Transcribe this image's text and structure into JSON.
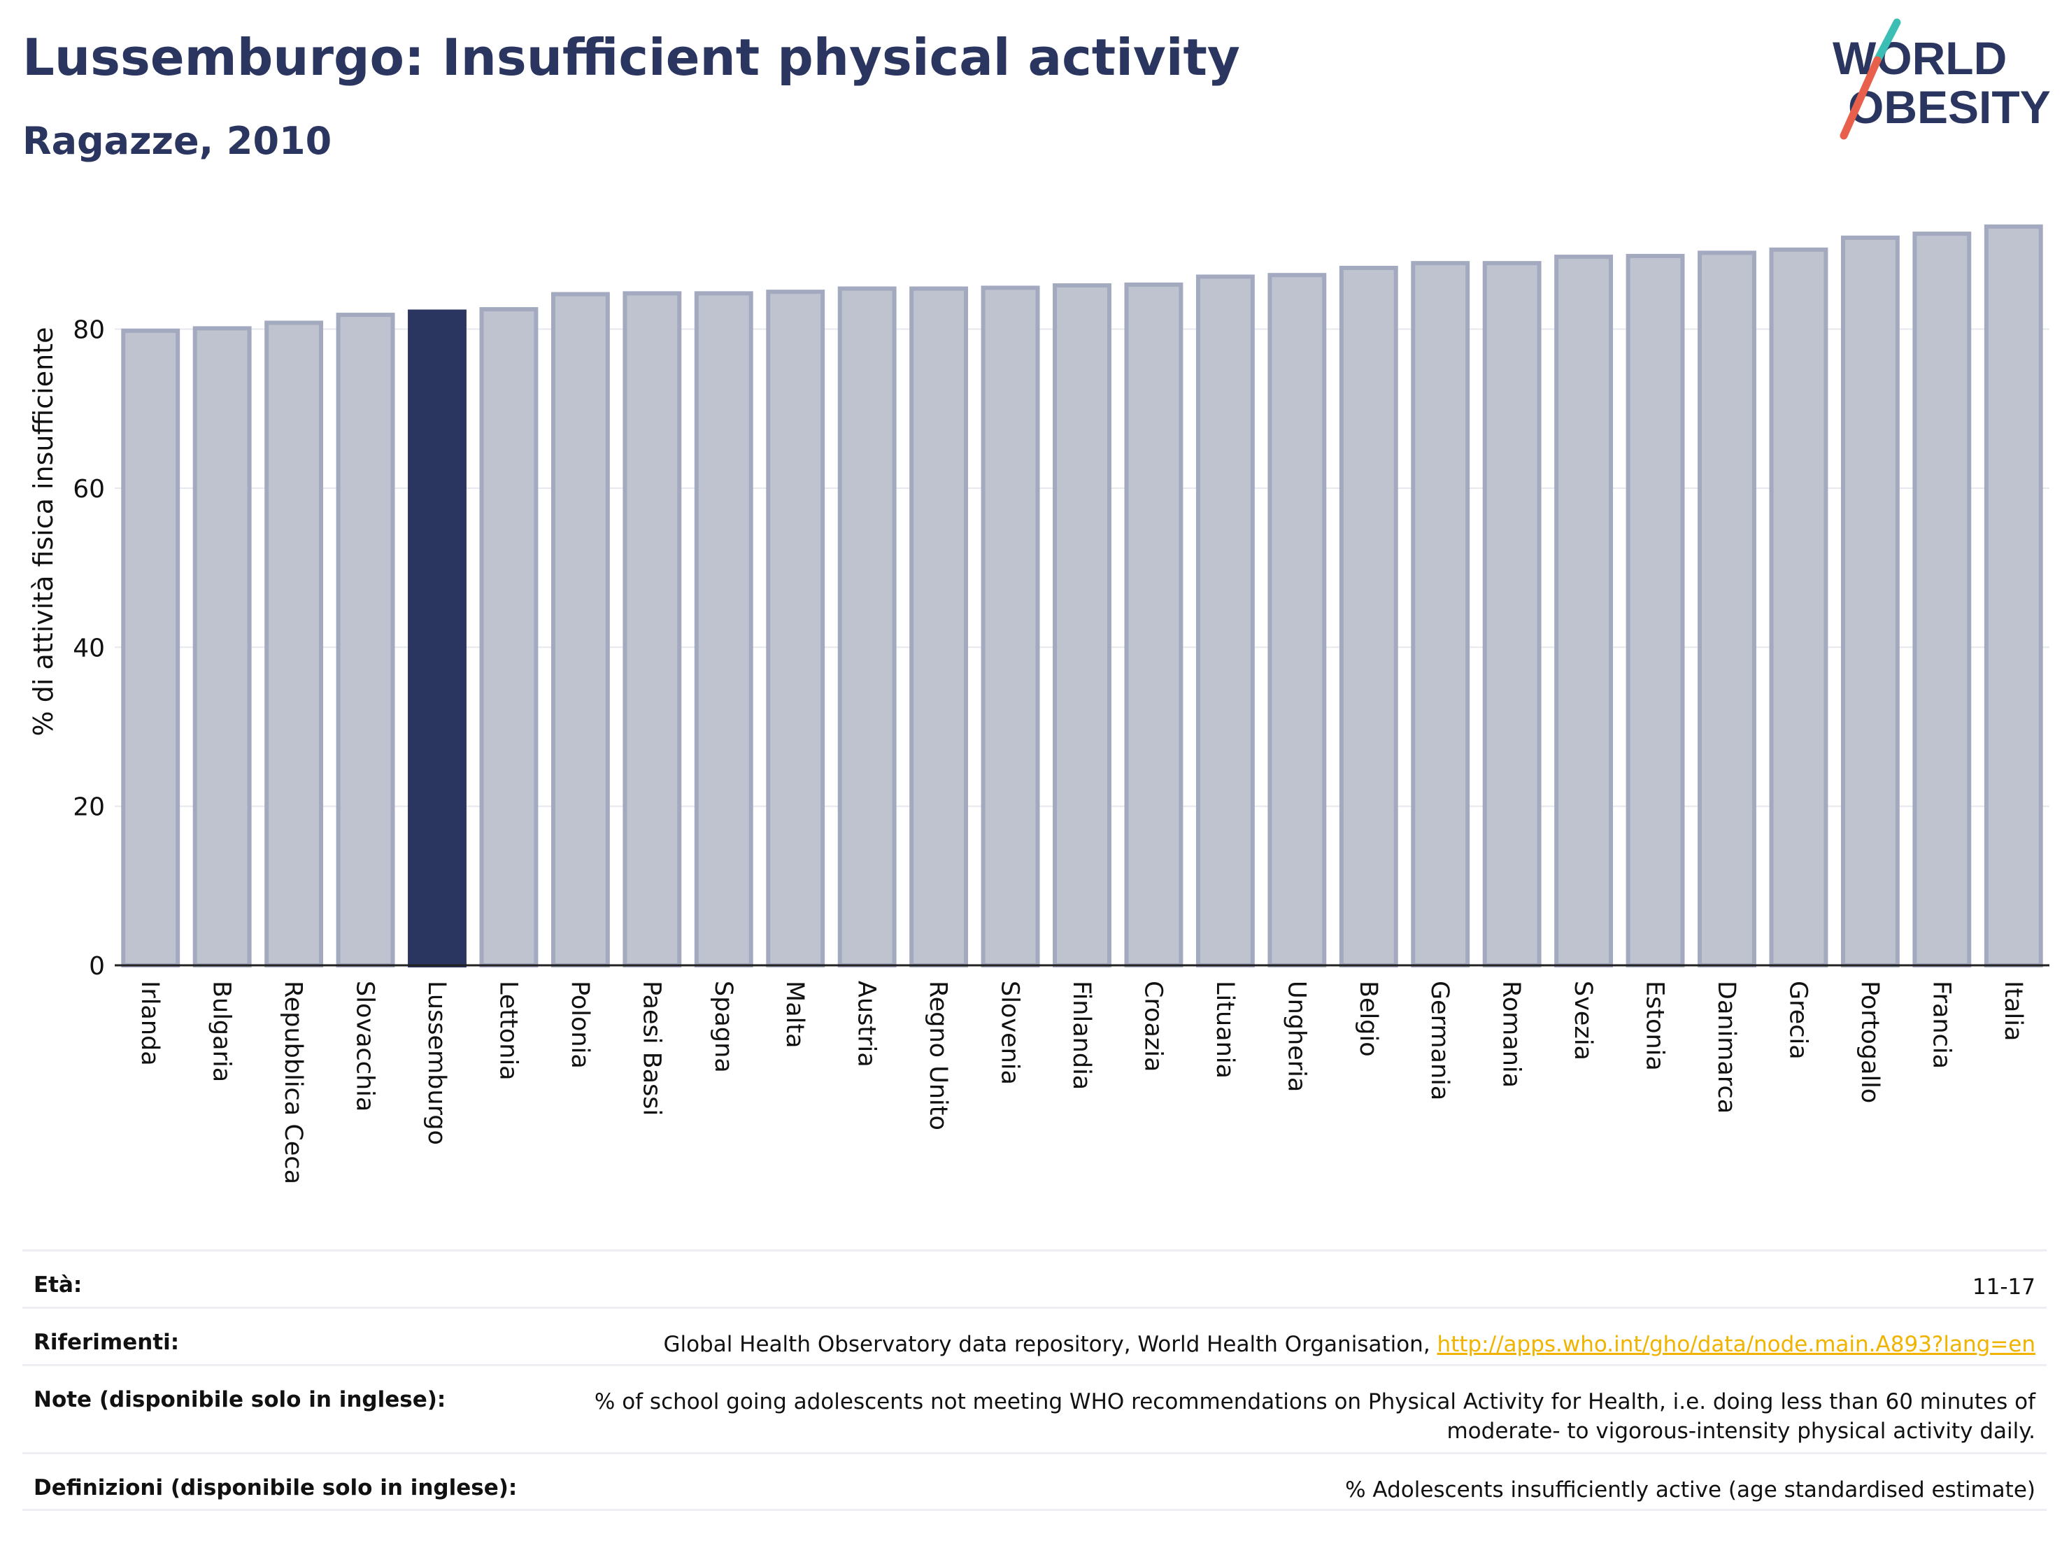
{
  "title": "Lussemburgo: Insufficient physical activity",
  "subtitle": "Ragazze, 2010",
  "logo": {
    "line1": "WORLD",
    "line2": "OBESITY",
    "accent_colors": [
      "#3bbfb5",
      "#e8604c"
    ]
  },
  "colors": {
    "highlight": "#2a3560",
    "bar": "#bfc3d0",
    "bar_border": "#a3a9bf",
    "text": "#2a3560"
  },
  "chart_data": {
    "type": "bar",
    "highlight": "Lussemburgo",
    "ylabel": "% di attività fisica insufficiente",
    "xlabel": "",
    "ylim": [
      0,
      95
    ],
    "yticks": [
      0,
      20,
      40,
      60,
      80
    ],
    "grid": true,
    "categories": [
      "Irlanda",
      "Bulgaria",
      "Repubblica Ceca",
      "Slovacchia",
      "Lussemburgo",
      "Lettonia",
      "Polonia",
      "Paesi Bassi",
      "Spagna",
      "Malta",
      "Austria",
      "Regno Unito",
      "Slovenia",
      "Finlandia",
      "Croazia",
      "Lituania",
      "Ungheria",
      "Belgio",
      "Germania",
      "Romania",
      "Svezia",
      "Estonia",
      "Danimarca",
      "Grecia",
      "Portogallo",
      "Francia",
      "Italia"
    ],
    "values": [
      79.8,
      80.1,
      80.8,
      81.8,
      82.2,
      82.5,
      84.4,
      84.5,
      84.5,
      84.7,
      85.1,
      85.1,
      85.2,
      85.5,
      85.6,
      86.6,
      86.8,
      87.7,
      88.3,
      88.3,
      89.1,
      89.2,
      89.6,
      90.0,
      91.5,
      92.0,
      92.9
    ]
  },
  "meta": {
    "age_label": "Età:",
    "age_value": "11-17",
    "refs_label": "Riferimenti:",
    "refs_value": "Global Health Observatory data repository, World Health Organisation,",
    "refs_link": "http://apps.who.int/gho/data/node.main.A893?lang=en",
    "notes_label": "Note (disponibile solo in inglese):",
    "notes_value": "% of school going adolescents not meeting WHO recommendations on Physical Activity for Health, i.e. doing less than 60 minutes of moderate- to vigorous-intensity physical activity daily.",
    "defs_label": "Definizioni (disponibile solo in inglese):",
    "defs_value": "% Adolescents insufficiently active (age standardised estimate)"
  }
}
